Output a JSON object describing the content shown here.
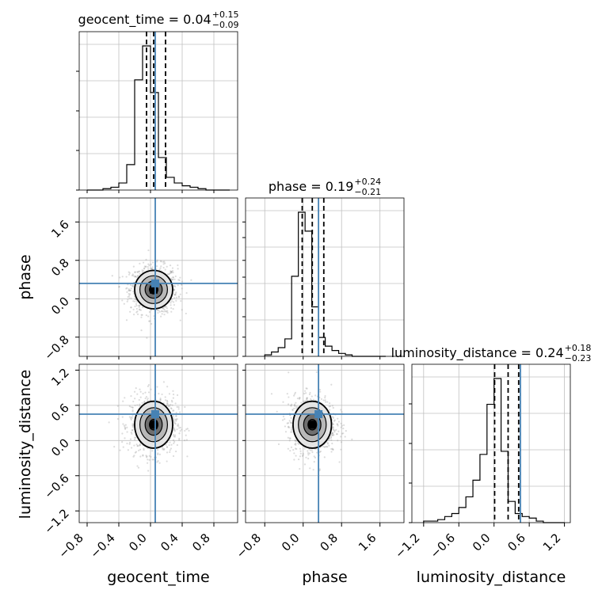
{
  "chart_data": {
    "type": "corner",
    "parameters": [
      "geocent_time",
      "phase",
      "luminosity_distance"
    ],
    "truths": {
      "geocent_time": 0.06,
      "phase": 0.32,
      "luminosity_distance": 0.45
    },
    "colors": {
      "truth": "#4682b4",
      "hist": "#000000",
      "grid": "#c0c0c0",
      "scatter": "#9a9a9a"
    },
    "grid": true,
    "titles": [
      {
        "name": "geocent_time",
        "main": "geocent_time = 0.04",
        "plus": "+0.15",
        "minus": "−0.09"
      },
      {
        "name": "phase",
        "main": "phase = 0.19",
        "plus": "+0.24",
        "minus": "−0.21"
      },
      {
        "name": "luminosity_distance",
        "main": "luminosity_distance = 0.24",
        "plus": "+0.18",
        "minus": "−0.23"
      }
    ],
    "xlabels": [
      "geocent_time",
      "phase",
      "luminosity_distance"
    ],
    "ylabels": [
      "phase",
      "luminosity_distance"
    ],
    "ranges": {
      "geocent_time": [
        -0.9,
        1.1
      ],
      "phase": [
        -1.2,
        2.1
      ],
      "luminosity_distance": [
        -1.4,
        1.3
      ]
    },
    "ticks": {
      "geocent_time": {
        "values": [
          -0.8,
          -0.4,
          0.0,
          0.4,
          0.8
        ],
        "labels": [
          "−0.8",
          "−0.4",
          "0.0",
          "0.4",
          "0.8"
        ]
      },
      "phase": {
        "values": [
          -0.8,
          0.0,
          0.8,
          1.6
        ],
        "labels": [
          "−0.8",
          "0.0",
          "0.8",
          "1.6"
        ]
      },
      "luminosity_distance": {
        "values": [
          -1.2,
          -0.6,
          0.0,
          0.6,
          1.2
        ],
        "labels": [
          "−1.2",
          "−0.6",
          "0.0",
          "0.6",
          "1.2"
        ]
      }
    },
    "quantiles": {
      "geocent_time": [
        -0.05,
        0.04,
        0.19
      ],
      "phase": [
        -0.02,
        0.19,
        0.43
      ],
      "luminosity_distance": [
        0.01,
        0.24,
        0.42
      ]
    },
    "histograms": {
      "geocent_time": {
        "bin_start": -0.8,
        "bin_width": 0.1,
        "counts": [
          0,
          0,
          1,
          2,
          5,
          18,
          78,
          102,
          69,
          23,
          9,
          5,
          3,
          2,
          1,
          0,
          0,
          0
        ]
      },
      "phase": {
        "bin_start": -0.8,
        "bin_width": 0.14,
        "counts": [
          1,
          3,
          6,
          12,
          55,
          99,
          86,
          34,
          13,
          7,
          4,
          2,
          1,
          0,
          0,
          0,
          0,
          0
        ]
      },
      "luminosity_distance": {
        "bin_start": -1.2,
        "bin_width": 0.12,
        "counts": [
          1,
          1,
          2,
          4,
          6,
          10,
          17,
          28,
          45,
          78,
          95,
          47,
          14,
          6,
          4,
          3,
          1,
          0,
          0,
          0
        ]
      }
    },
    "pairs": [
      {
        "x": "geocent_time",
        "y": "phase",
        "center": [
          0.04,
          0.19
        ],
        "sd": [
          0.12,
          0.2
        ]
      },
      {
        "x": "geocent_time",
        "y": "luminosity_distance",
        "center": [
          0.04,
          0.27
        ],
        "sd": [
          0.12,
          0.2
        ]
      },
      {
        "x": "phase",
        "y": "luminosity_distance",
        "center": [
          0.19,
          0.27
        ],
        "sd": [
          0.2,
          0.2
        ]
      }
    ]
  }
}
